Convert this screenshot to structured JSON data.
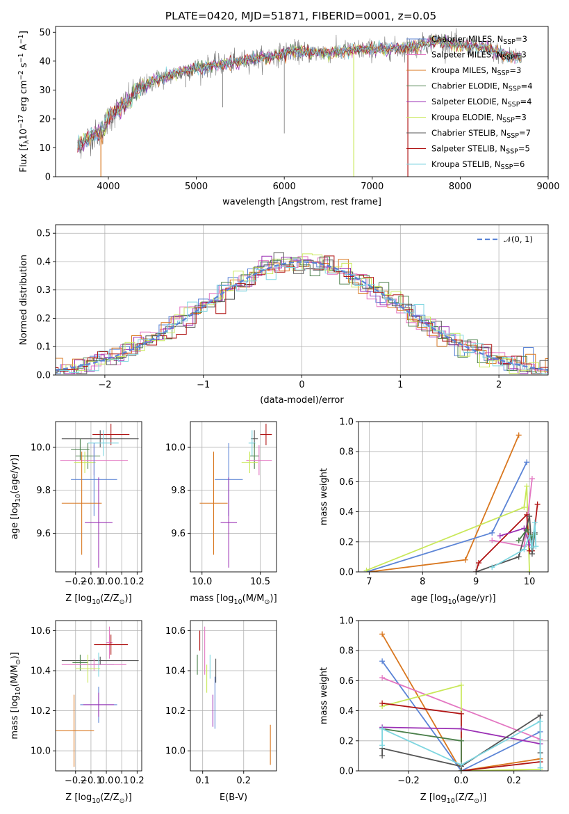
{
  "figure_title": "PLATE=0420, MJD=51871, FIBERID=0001, z=0.05",
  "colors": {
    "chabrier_miles": "#5b84d6",
    "salpeter_miles": "#e377c2",
    "kroupa_miles": "#d9771f",
    "chabrier_elodie": "#4a7f4a",
    "salpeter_elodie": "#9b30b5",
    "kroupa_elodie": "#c9e85a",
    "chabrier_stelib": "#555555",
    "salpeter_stelib": "#b01515",
    "kroupa_stelib": "#7fd6e0",
    "data": "#777777",
    "normal": "#5b84d6"
  },
  "chart_data": [
    {
      "type": "line",
      "title": "PLATE=0420, MJD=51871, FIBERID=0001, z=0.05",
      "xlabel": "wavelength [Angstrom, rest frame]",
      "ylabel_parts": [
        "Flux [f",
        "λ",
        "10",
        "−17",
        " erg cm",
        "−2",
        " s",
        "−1",
        " A",
        "−1",
        "]"
      ],
      "xlim": [
        3400,
        9000
      ],
      "ylim": [
        0,
        52
      ],
      "xticks": [
        4000,
        5000,
        6000,
        7000,
        8000,
        9000
      ],
      "yticks": [
        0,
        10,
        20,
        30,
        40,
        50
      ],
      "continuum": {
        "x": [
          3650,
          3700,
          3800,
          3900,
          3950,
          4000,
          4100,
          4200,
          4300,
          4400,
          4500,
          4700,
          4900,
          5100,
          5300,
          5500,
          5700,
          5900,
          6100,
          6300,
          6500,
          6700,
          6900,
          7100,
          7300,
          7500,
          7700,
          7900,
          8100,
          8300,
          8500,
          8700
        ],
        "y": [
          10,
          12,
          14,
          15,
          17,
          20,
          23,
          25,
          29,
          31,
          33,
          35,
          37,
          38,
          39,
          40,
          41,
          42,
          43.5,
          43,
          43,
          43.5,
          44,
          44,
          44.5,
          45,
          47,
          46,
          45,
          44.5,
          42,
          41
        ]
      },
      "spikes": [
        {
          "x": 3915,
          "y": 0,
          "series": "Kroupa MILES"
        },
        {
          "x": 6790,
          "y": 0,
          "series": "Kroupa ELODIE"
        },
        {
          "x": 7405,
          "y": 0,
          "series": "Salpeter STELIB"
        }
      ],
      "legend_position": "upper right",
      "series": [
        {
          "name": "Chabrier MILES, N",
          "sub": "SSP",
          "tail": "=3",
          "color": "chabrier_miles"
        },
        {
          "name": "Salpeter MILES, N",
          "sub": "SSP",
          "tail": "=3",
          "color": "salpeter_miles"
        },
        {
          "name": "Kroupa MILES, N",
          "sub": "SSP",
          "tail": "=3",
          "color": "kroupa_miles"
        },
        {
          "name": "Chabrier ELODIE, N",
          "sub": "SSP",
          "tail": "=4",
          "color": "chabrier_elodie"
        },
        {
          "name": "Salpeter ELODIE, N",
          "sub": "SSP",
          "tail": "=4",
          "color": "salpeter_elodie"
        },
        {
          "name": "Kroupa ELODIE, N",
          "sub": "SSP",
          "tail": "=3",
          "color": "kroupa_elodie"
        },
        {
          "name": "Chabrier STELIB, N",
          "sub": "SSP",
          "tail": "=7",
          "color": "chabrier_stelib"
        },
        {
          "name": "Salpeter STELIB, N",
          "sub": "SSP",
          "tail": "=5",
          "color": "salpeter_stelib"
        },
        {
          "name": "Kroupa STELIB, N",
          "sub": "SSP",
          "tail": "=6",
          "color": "kroupa_stelib"
        }
      ]
    },
    {
      "type": "histogram",
      "xlabel": "(data-model)/error",
      "ylabel": "Normed distribution",
      "xlim": [
        -2.5,
        2.5
      ],
      "ylim": [
        0,
        0.53
      ],
      "xticks": [
        -2,
        -1,
        0,
        1,
        2
      ],
      "yticks": [
        0.0,
        0.1,
        0.2,
        0.3,
        0.4,
        0.5
      ],
      "grid": true,
      "bin_width": 0.1,
      "legend_position": "upper right",
      "legend_label": "𝒩(0, 1)",
      "reference_curve": "normal pdf, mean 0, sigma 1, dashed"
    },
    {
      "type": "scatter",
      "xlabel_parts": [
        "Z [log",
        "10",
        "(Z/Z",
        "⊙",
        ")]"
      ],
      "ylabel_parts": [
        "age  [log",
        "10",
        "(age/yr)]"
      ],
      "xlim": [
        -0.33,
        0.23
      ],
      "ylim": [
        9.42,
        10.12
      ],
      "xticks": [
        -0.2,
        -0.1,
        0.0,
        0.1,
        0.2
      ],
      "yticks": [
        9.6,
        9.8,
        10.0
      ],
      "grid": true,
      "points": [
        {
          "x": 0.03,
          "y": 10.06,
          "xerr": 0.12,
          "yerr": 0.05,
          "color": "salpeter_stelib"
        },
        {
          "x": -0.04,
          "y": 10.04,
          "xerr": 0.25,
          "yerr": 0.04,
          "color": "chabrier_stelib"
        },
        {
          "x": -0.02,
          "y": 10.02,
          "xerr": 0.1,
          "yerr": 0.06,
          "color": "kroupa_stelib"
        },
        {
          "x": -0.17,
          "y": 9.99,
          "xerr": 0.06,
          "yerr": 0.05,
          "color": "chabrier_elodie"
        },
        {
          "x": -0.12,
          "y": 9.96,
          "xerr": 0.08,
          "yerr": 0.06,
          "color": "chabrier_elodie"
        },
        {
          "x": -0.08,
          "y": 9.94,
          "xerr": 0.22,
          "yerr": 0.07,
          "color": "salpeter_miles"
        },
        {
          "x": -0.14,
          "y": 9.93,
          "xerr": 0.07,
          "yerr": 0.05,
          "color": "kroupa_elodie"
        },
        {
          "x": -0.08,
          "y": 9.85,
          "xerr": 0.15,
          "yerr": 0.17,
          "color": "chabrier_miles"
        },
        {
          "x": -0.16,
          "y": 9.74,
          "xerr": 0.13,
          "yerr": 0.24,
          "color": "kroupa_miles"
        },
        {
          "x": -0.05,
          "y": 9.65,
          "xerr": 0.09,
          "yerr": 0.21,
          "color": "salpeter_elodie"
        }
      ]
    },
    {
      "type": "scatter",
      "xlabel_parts": [
        "mass [log",
        "10",
        "(M/M",
        "⊙",
        ")]"
      ],
      "xlim": [
        9.9,
        10.64
      ],
      "ylim": [
        9.42,
        10.12
      ],
      "xticks": [
        10.0,
        10.5
      ],
      "yticks": [
        9.6,
        9.8,
        10.0
      ],
      "grid": true,
      "points": [
        {
          "x": 10.55,
          "y": 10.06,
          "xerr": 0.05,
          "yerr": 0.05,
          "color": "salpeter_stelib"
        },
        {
          "x": 10.45,
          "y": 10.04,
          "xerr": 0.03,
          "yerr": 0.04,
          "color": "chabrier_stelib"
        },
        {
          "x": 10.43,
          "y": 10.02,
          "xerr": 0.03,
          "yerr": 0.06,
          "color": "kroupa_stelib"
        },
        {
          "x": 10.45,
          "y": 9.96,
          "xerr": 0.04,
          "yerr": 0.06,
          "color": "chabrier_elodie"
        },
        {
          "x": 10.49,
          "y": 9.94,
          "xerr": 0.11,
          "yerr": 0.07,
          "color": "salpeter_miles"
        },
        {
          "x": 10.41,
          "y": 9.93,
          "xerr": 0.07,
          "yerr": 0.05,
          "color": "kroupa_elodie"
        },
        {
          "x": 10.23,
          "y": 9.85,
          "xerr": 0.12,
          "yerr": 0.17,
          "color": "chabrier_miles"
        },
        {
          "x": 10.1,
          "y": 9.74,
          "xerr": 0.12,
          "yerr": 0.24,
          "color": "kroupa_miles"
        },
        {
          "x": 10.23,
          "y": 9.65,
          "xerr": 0.07,
          "yerr": 0.21,
          "color": "salpeter_elodie"
        }
      ]
    },
    {
      "type": "line",
      "xlabel_parts": [
        "age  [log",
        "10",
        "(age/yr)]"
      ],
      "ylabel": "mass weight",
      "xlim": [
        6.8,
        10.35
      ],
      "ylim": [
        0,
        1.0
      ],
      "xticks": [
        7,
        8,
        9,
        10
      ],
      "yticks": [
        0.0,
        0.2,
        0.4,
        0.6,
        0.8,
        1.0
      ],
      "grid": true,
      "series": [
        {
          "color": "kroupa_miles",
          "x": [
            7.0,
            8.8,
            9.8
          ],
          "y": [
            0.0,
            0.08,
            0.91
          ]
        },
        {
          "color": "chabrier_miles",
          "x": [
            6.95,
            9.3,
            9.95
          ],
          "y": [
            0.0,
            0.26,
            0.73
          ]
        },
        {
          "color": "kroupa_elodie",
          "x": [
            6.95,
            9.9,
            9.95,
            10.0
          ],
          "y": [
            0.01,
            0.43,
            0.57,
            0.0
          ]
        },
        {
          "color": "salpeter_miles",
          "x": [
            9.3,
            9.9,
            10.05
          ],
          "y": [
            0.21,
            0.17,
            0.62
          ]
        },
        {
          "color": "salpeter_stelib",
          "x": [
            9.0,
            9.05,
            9.95,
            10.0,
            10.05,
            10.15
          ],
          "y": [
            0.0,
            0.06,
            0.38,
            0.14,
            0.14,
            0.45
          ]
        },
        {
          "color": "salpeter_elodie",
          "x": [
            9.45,
            9.9,
            10.0
          ],
          "y": [
            0.24,
            0.29,
            0.18
          ]
        },
        {
          "color": "chabrier_stelib",
          "x": [
            9.0,
            9.8,
            10.0,
            10.05,
            10.1
          ],
          "y": [
            0.0,
            0.1,
            0.37,
            0.12,
            0.26
          ]
        },
        {
          "color": "chabrier_elodie",
          "x": [
            9.8,
            9.95,
            10.05,
            10.1
          ],
          "y": [
            0.21,
            0.28,
            0.23,
            0.25
          ]
        },
        {
          "color": "kroupa_stelib",
          "x": [
            9.3,
            9.9,
            10.0,
            10.05,
            10.1,
            10.12
          ],
          "y": [
            0.03,
            0.15,
            0.24,
            0.16,
            0.33,
            0.17
          ]
        }
      ]
    },
    {
      "type": "scatter",
      "xlabel_parts": [
        "Z [log",
        "10",
        "(Z/Z",
        "⊙",
        ")]"
      ],
      "ylabel_parts": [
        "mass [log",
        "10",
        "(M/M",
        "⊙",
        ")]"
      ],
      "xlim": [
        -0.33,
        0.23
      ],
      "ylim": [
        9.9,
        10.65
      ],
      "xticks": [
        -0.2,
        -0.1,
        0.0,
        0.1,
        0.2
      ],
      "yticks": [
        10.0,
        10.2,
        10.4,
        10.6
      ],
      "grid": true,
      "points": [
        {
          "x": 0.02,
          "y": 10.54,
          "xerr": 0.02,
          "yerr": 0.08,
          "color": "salpeter_miles"
        },
        {
          "x": 0.03,
          "y": 10.53,
          "xerr": 0.11,
          "yerr": 0.05,
          "color": "salpeter_stelib"
        },
        {
          "x": -0.04,
          "y": 10.45,
          "xerr": 0.25,
          "yerr": 0.02,
          "color": "chabrier_stelib"
        },
        {
          "x": -0.17,
          "y": 10.44,
          "xerr": 0.05,
          "yerr": 0.04,
          "color": "chabrier_elodie"
        },
        {
          "x": -0.05,
          "y": 10.43,
          "xerr": 0.1,
          "yerr": 0.06,
          "color": "kroupa_stelib"
        },
        {
          "x": -0.08,
          "y": 10.43,
          "xerr": 0.21,
          "yerr": 0.03,
          "color": "salpeter_miles"
        },
        {
          "x": -0.12,
          "y": 10.41,
          "xerr": 0.08,
          "yerr": 0.07,
          "color": "kroupa_elodie"
        },
        {
          "x": -0.05,
          "y": 10.23,
          "xerr": 0.12,
          "yerr": 0.09,
          "color": "chabrier_miles"
        },
        {
          "x": -0.05,
          "y": 10.23,
          "xerr": 0.1,
          "yerr": 0.06,
          "color": "salpeter_elodie"
        },
        {
          "x": -0.21,
          "y": 10.1,
          "xerr": 0.13,
          "yerr": 0.18,
          "color": "kroupa_miles"
        }
      ]
    },
    {
      "type": "scatter",
      "xlabel": "E(B-V)",
      "xlim": [
        0.07,
        0.28
      ],
      "ylim": [
        9.9,
        10.65
      ],
      "xticks": [
        0.1,
        0.2
      ],
      "yticks": [
        10.0,
        10.2,
        10.4,
        10.6
      ],
      "grid": true,
      "points": [
        {
          "x": 0.087,
          "y": 10.43,
          "yerr": 0.05,
          "color": "chabrier_elodie"
        },
        {
          "x": 0.093,
          "y": 10.55,
          "yerr": 0.05,
          "color": "salpeter_stelib"
        },
        {
          "x": 0.105,
          "y": 10.5,
          "yerr": 0.12,
          "color": "salpeter_miles"
        },
        {
          "x": 0.11,
          "y": 10.36,
          "yerr": 0.07,
          "color": "kroupa_elodie"
        },
        {
          "x": 0.118,
          "y": 10.42,
          "yerr": 0.06,
          "color": "kroupa_stelib"
        },
        {
          "x": 0.125,
          "y": 10.2,
          "yerr": 0.08,
          "color": "salpeter_elodie"
        },
        {
          "x": 0.13,
          "y": 10.24,
          "yerr": 0.13,
          "color": "chabrier_miles"
        },
        {
          "x": 0.132,
          "y": 10.4,
          "yerr": 0.06,
          "color": "chabrier_stelib"
        },
        {
          "x": 0.265,
          "y": 10.03,
          "yerr": 0.1,
          "color": "kroupa_miles"
        }
      ]
    },
    {
      "type": "line",
      "xlabel_parts": [
        "Z [log",
        "10",
        "(Z/Z",
        "⊙",
        ")]"
      ],
      "ylabel": "mass weight",
      "xlim": [
        -0.39,
        0.33
      ],
      "ylim": [
        0,
        1.0
      ],
      "xticks": [
        -0.2,
        0.0,
        0.2
      ],
      "yticks": [
        0.0,
        0.2,
        0.4,
        0.6,
        0.8,
        1.0
      ],
      "grid": true,
      "series": [
        {
          "color": "kroupa_miles",
          "x": [
            -0.3,
            0.0,
            0.3
          ],
          "y": [
            0.91,
            0.0,
            0.08
          ]
        },
        {
          "color": "chabrier_miles",
          "x": [
            -0.3,
            0.0,
            0.3
          ],
          "y": [
            0.73,
            0.0,
            0.26
          ]
        },
        {
          "color": "salpeter_miles",
          "x": [
            -0.3,
            0.3
          ],
          "y": [
            0.62,
            0.21
          ]
        },
        {
          "color": "kroupa_elodie",
          "x": [
            -0.3,
            0.0,
            0.0,
            0.3
          ],
          "y": [
            0.43,
            0.57,
            0.0,
            0.01
          ]
        },
        {
          "color": "salpeter_stelib",
          "x": [
            -0.3,
            0.0,
            0.0,
            0.3
          ],
          "y": [
            0.45,
            0.38,
            0.0,
            0.06
          ]
        },
        {
          "color": "salpeter_elodie",
          "x": [
            -0.3,
            0.0,
            0.3
          ],
          "y": [
            0.29,
            0.28,
            0.18
          ]
        },
        {
          "color": "chabrier_elodie",
          "x": [
            -0.3,
            0.0,
            0.0
          ],
          "y": [
            0.28,
            0.2,
            0.0
          ]
        },
        {
          "color": "chabrier_stelib",
          "x": [
            -0.3,
            -0.3,
            0.0,
            0.3,
            0.3
          ],
          "y": [
            0.1,
            0.15,
            0.03,
            0.37,
            0.12
          ]
        },
        {
          "color": "kroupa_stelib",
          "x": [
            -0.3,
            -0.3,
            0.0,
            0.3,
            0.3
          ],
          "y": [
            0.17,
            0.28,
            0.04,
            0.33,
            0.02
          ]
        }
      ]
    }
  ]
}
